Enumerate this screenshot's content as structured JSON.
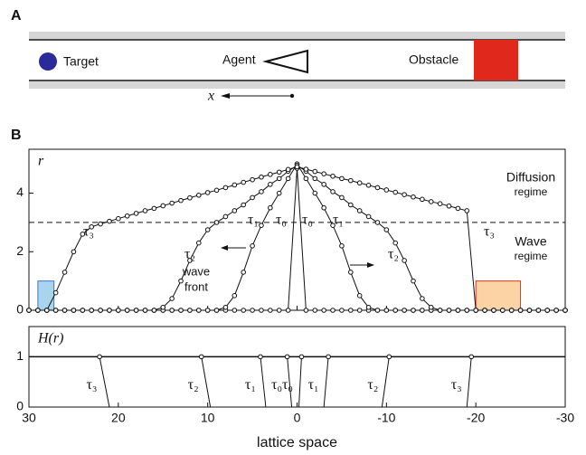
{
  "panel_a": {
    "label": "A",
    "target": "Target",
    "agent": "Agent",
    "obstacle": "Obstacle",
    "axis": "x"
  },
  "panel_b_label": "B",
  "chart_data": [
    {
      "type": "line",
      "ylabel": "r",
      "x": [
        30,
        29,
        28,
        27,
        26,
        25,
        24,
        23,
        22,
        21,
        20,
        19,
        18,
        17,
        16,
        15,
        14,
        13,
        12,
        11,
        10,
        9,
        8,
        7,
        6,
        5,
        4,
        3,
        2,
        1,
        0,
        -1,
        -2,
        -3,
        -4,
        -5,
        -6,
        -7,
        -8,
        -9,
        -10,
        -11,
        -12,
        -13,
        -14,
        -15,
        -16,
        -17,
        -18,
        -19,
        -20,
        -21,
        -22,
        -23,
        -24,
        -25,
        -26,
        -27,
        -28,
        -29,
        -30
      ],
      "xlim": [
        30,
        -30
      ],
      "xticks": [
        30,
        20,
        10,
        0,
        -10,
        -20,
        -30
      ],
      "ylim": [
        0,
        5.5
      ],
      "yticks": [
        0,
        2,
        4
      ],
      "threshold": 3,
      "series": [
        {
          "name": "τ₀",
          "color": "#111",
          "values": [
            0,
            0,
            0,
            0,
            0,
            0,
            0,
            0,
            0,
            0,
            0,
            0,
            0,
            0,
            0,
            0,
            0,
            0,
            0,
            0,
            0,
            0,
            0,
            0,
            0,
            0,
            0,
            0,
            0,
            0,
            4.85,
            0,
            0,
            0,
            0,
            0,
            0,
            0,
            0,
            0,
            0,
            0,
            0,
            0,
            0,
            0,
            0,
            0,
            0,
            0,
            0,
            0,
            0,
            0,
            0,
            0,
            0,
            0,
            0,
            0,
            0
          ]
        },
        {
          "name": "τ₁",
          "color": "#111",
          "values": [
            0,
            0,
            0,
            0,
            0,
            0,
            0,
            0,
            0,
            0,
            0,
            0,
            0,
            0,
            0,
            0,
            0,
            0,
            0,
            0,
            0,
            0,
            0.1,
            0.5,
            1.3,
            2.2,
            2.9,
            3.5,
            4.0,
            4.5,
            5.0,
            4.5,
            4.0,
            3.5,
            2.9,
            2.2,
            1.3,
            0.5,
            0.1,
            0,
            0,
            0,
            0,
            0,
            0,
            0,
            0,
            0,
            0,
            0,
            0,
            0,
            0,
            0,
            0,
            0,
            0,
            0,
            0,
            0,
            0
          ]
        },
        {
          "name": "τ₂",
          "color": "#111",
          "values": [
            0,
            0,
            0,
            0,
            0,
            0,
            0,
            0,
            0,
            0,
            0,
            0,
            0,
            0,
            0,
            0.1,
            0.4,
            1.0,
            1.7,
            2.3,
            2.75,
            3.0,
            3.2,
            3.4,
            3.6,
            3.85,
            4.05,
            4.3,
            4.5,
            4.75,
            4.95,
            4.75,
            4.5,
            4.3,
            4.05,
            3.85,
            3.6,
            3.4,
            3.2,
            3.0,
            2.75,
            2.3,
            1.7,
            1.0,
            0.4,
            0.1,
            0,
            0,
            0,
            0,
            0,
            0,
            0,
            0,
            0,
            0,
            0,
            0,
            0,
            0,
            0
          ]
        },
        {
          "name": "τ₃",
          "color": "#111",
          "values": [
            0,
            0,
            0,
            0.6,
            1.3,
            2.0,
            2.6,
            2.85,
            2.95,
            3.04,
            3.13,
            3.22,
            3.31,
            3.4,
            3.48,
            3.57,
            3.66,
            3.75,
            3.84,
            3.93,
            4.02,
            4.1,
            4.19,
            4.28,
            4.37,
            4.46,
            4.55,
            4.64,
            4.72,
            4.81,
            4.9,
            4.82,
            4.74,
            4.66,
            4.58,
            4.5,
            4.43,
            4.35,
            4.27,
            4.19,
            4.11,
            4.03,
            3.95,
            3.87,
            3.79,
            3.71,
            3.64,
            3.56,
            3.48,
            3.4,
            0,
            0,
            0,
            0,
            0,
            0,
            0,
            0,
            0,
            0,
            0
          ]
        }
      ],
      "regions": [
        {
          "x": [
            29,
            27.2
          ],
          "height": 1,
          "color": "#a8d4ee",
          "edge": "#3a78c8"
        },
        {
          "x": [
            -20,
            -25
          ],
          "height": 1,
          "color": "#fbd3a4",
          "edge": "#e03020"
        }
      ],
      "annotations": {
        "diffusion": "Diffusion",
        "diffusion_sub": "regime",
        "wave": "Wave",
        "wave_sub": "regime",
        "front1": "wave",
        "front2": "front"
      }
    },
    {
      "type": "step-fronts",
      "ylabel": "H(r)",
      "xlabel": "lattice space",
      "xlim": [
        30,
        -30
      ],
      "xticks": [
        30,
        20,
        10,
        0,
        -10,
        -20,
        -30
      ],
      "ylim": [
        0,
        1.6
      ],
      "yticks": [
        0,
        1
      ],
      "level": 1,
      "fronts": [
        {
          "name": "τ₃",
          "top_x": 22.1,
          "bottom_x": 21
        },
        {
          "name": "τ₂",
          "top_x": 10.7,
          "bottom_x": 9.7
        },
        {
          "name": "τ₁",
          "top_x": 4.1,
          "bottom_x": 3.5
        },
        {
          "name": "τ₀",
          "top_x": 1.1,
          "bottom_x": 0.6
        },
        {
          "name": "τ₀",
          "top_x": -0.5,
          "bottom_x": -0.2
        },
        {
          "name": "τ₁",
          "top_x": -3.5,
          "bottom_x": -3
        },
        {
          "name": "τ₂",
          "top_x": -10.3,
          "bottom_x": -9.5
        },
        {
          "name": "τ₃",
          "top_x": -19.5,
          "bottom_x": -19
        }
      ]
    }
  ]
}
